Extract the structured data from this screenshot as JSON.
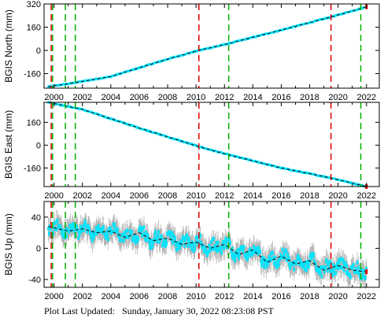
{
  "footer": {
    "label": "Plot Last Updated:",
    "timestamp": "Sunday, January 30, 2022 08:23:08 PST"
  },
  "colors": {
    "data": "#00e5ff",
    "error_bar": "#aaaaaa",
    "trend": "#000000",
    "event_red": "#e00000",
    "event_green": "#00b000",
    "endpoint": "#e00000"
  },
  "chart_data": [
    {
      "type": "line",
      "ylabel": "BGIS North (mm)",
      "xlim": [
        1999.3,
        2022.9
      ],
      "ylim": [
        -260,
        320
      ],
      "yticks": [
        -160,
        0,
        160,
        320
      ],
      "xticks": [
        2000,
        2002,
        2004,
        2006,
        2008,
        2010,
        2012,
        2014,
        2016,
        2018,
        2020,
        2022
      ],
      "series": [
        {
          "x": [
            1999.6,
            2001.0,
            2004.0,
            2008.0,
            2010.2,
            2012.0,
            2016.0,
            2019.5,
            2022.0
          ],
          "y": [
            -250,
            -230,
            -180,
            -60,
            0,
            40,
            140,
            230,
            300
          ]
        }
      ],
      "events_red": [
        1999.8,
        2010.2,
        2019.5
      ],
      "events_green": [
        1999.9,
        2000.8,
        2001.5,
        2012.3,
        2021.6
      ]
    },
    {
      "type": "line",
      "ylabel": "BGIS East (mm)",
      "xlim": [
        1999.3,
        2022.9
      ],
      "ylim": [
        -290,
        300
      ],
      "yticks": [
        -160,
        0,
        160
      ],
      "xticks": [
        2000,
        2002,
        2004,
        2006,
        2008,
        2010,
        2012,
        2014,
        2016,
        2018,
        2020,
        2022
      ],
      "series": [
        {
          "x": [
            1999.6,
            2002.0,
            2006.0,
            2010.2,
            2012.0,
            2016.0,
            2019.5,
            2022.0
          ],
          "y": [
            300,
            250,
            120,
            -10,
            -60,
            -160,
            -230,
            -290
          ]
        }
      ],
      "events_red": [
        1999.8,
        2010.2,
        2019.5
      ],
      "events_green": [
        1999.9,
        2000.8,
        2001.5,
        2012.3,
        2021.6
      ]
    },
    {
      "type": "line",
      "ylabel": "BGIS Up (mm)",
      "xlim": [
        1999.3,
        2022.9
      ],
      "ylim": [
        -50,
        60
      ],
      "yticks": [
        -40,
        0,
        40
      ],
      "xticks": [
        2000,
        2002,
        2004,
        2006,
        2008,
        2010,
        2012,
        2014,
        2016,
        2018,
        2020,
        2022
      ],
      "series": [
        {
          "x": [
            1999.6,
            2001.0,
            2002.0,
            2003.0,
            2004.0,
            2005.0,
            2006.0,
            2007.0,
            2008.0,
            2009.0,
            2010.0,
            2011.0,
            2012.0,
            2013.0,
            2014.0,
            2015.0,
            2016.0,
            2017.0,
            2018.0,
            2019.0,
            2020.0,
            2021.0,
            2022.0
          ],
          "y": [
            28,
            22,
            25,
            20,
            22,
            14,
            20,
            10,
            13,
            5,
            8,
            0,
            5,
            -8,
            -2,
            -18,
            -10,
            -20,
            -16,
            -28,
            -22,
            -28,
            -30
          ]
        }
      ],
      "events_red": [
        1999.8,
        2010.2,
        2019.5
      ],
      "events_green": [
        1999.9,
        2000.8,
        2001.5,
        2012.3,
        2021.6
      ]
    }
  ]
}
